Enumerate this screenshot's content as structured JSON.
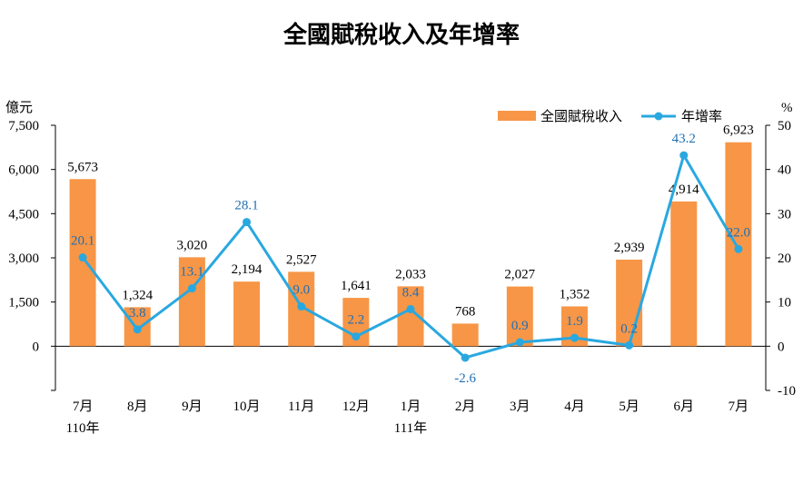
{
  "chart_data": {
    "type": "bar",
    "title": "全國賦稅收入及年增率",
    "categories": [
      "7月",
      "8月",
      "9月",
      "10月",
      "11月",
      "12月",
      "1月",
      "2月",
      "3月",
      "4月",
      "5月",
      "6月",
      "7月"
    ],
    "year_labels": [
      {
        "index": 0,
        "label": "110年"
      },
      {
        "index": 6,
        "label": "111年"
      }
    ],
    "series": [
      {
        "name": "全國賦稅收入",
        "type": "bar",
        "axis": "left",
        "color": "#f79646",
        "values": [
          5673,
          1324,
          3020,
          2194,
          2527,
          1641,
          2033,
          768,
          2027,
          1352,
          2939,
          4914,
          6923
        ],
        "labels": [
          "5,673",
          "1,324",
          "3,020",
          "2,194",
          "2,527",
          "1,641",
          "2,033",
          "768",
          "2,027",
          "1,352",
          "2,939",
          "4,914",
          "6,923"
        ]
      },
      {
        "name": "年增率",
        "type": "line",
        "axis": "right",
        "color": "#29a8e0",
        "label_color": "#1f6fb4",
        "values": [
          20.1,
          3.8,
          13.1,
          28.1,
          9.0,
          2.2,
          8.4,
          -2.6,
          0.9,
          1.9,
          0.2,
          43.2,
          22.0
        ],
        "labels": [
          "20.1",
          "3.8",
          "13.1",
          "28.1",
          "9.0",
          "2.2",
          "8.4",
          "-2.6",
          "0.9",
          "1.9",
          "0.2",
          "43.2",
          "22.0"
        ]
      }
    ],
    "left_axis": {
      "unit": "億元",
      "min": -1500,
      "max": 7500,
      "ticks": [
        0,
        1500,
        3000,
        4500,
        6000,
        7500
      ],
      "tick_labels": [
        "0",
        "1,500",
        "3,000",
        "4,500",
        "6,000",
        "7,500"
      ]
    },
    "right_axis": {
      "unit": "%",
      "min": -10,
      "max": 50,
      "ticks": [
        -10,
        0,
        10,
        20,
        30,
        40,
        50
      ],
      "tick_labels": [
        "-10",
        "0",
        "10",
        "20",
        "30",
        "40",
        "50"
      ]
    },
    "legend_position": "top-right",
    "grid": false
  }
}
